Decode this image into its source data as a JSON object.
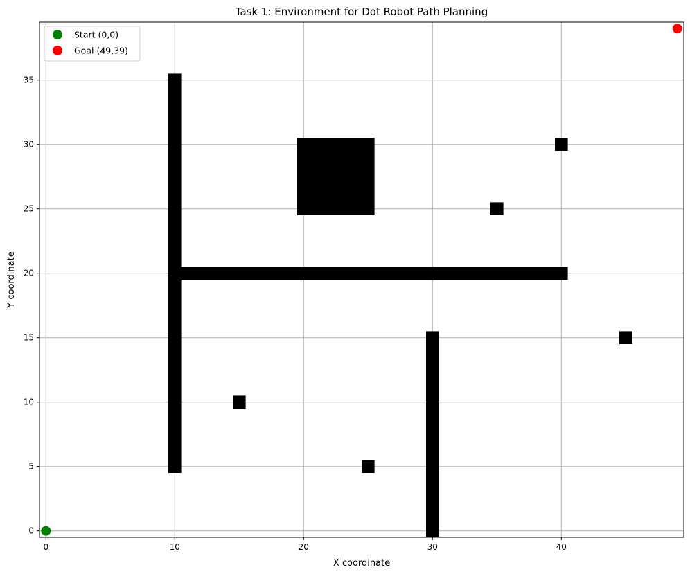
{
  "chart_data": {
    "type": "scatter",
    "title": "Task 1: Environment for Dot Robot Path Planning",
    "xlabel": "X coordinate",
    "ylabel": "Y coordinate",
    "xlim": [
      -0.5,
      49.5
    ],
    "ylim": [
      -0.5,
      39.5
    ],
    "xticks": [
      0,
      10,
      20,
      30,
      40
    ],
    "yticks": [
      0,
      5,
      10,
      15,
      20,
      25,
      30,
      35
    ],
    "grid": true,
    "legend_position": "top-left",
    "obstacle_color": "#000000",
    "obstacles": [
      {
        "x": [
          10,
          10
        ],
        "y": [
          5,
          35
        ]
      },
      {
        "x": [
          10,
          40
        ],
        "y": [
          20,
          20
        ]
      },
      {
        "x": [
          20,
          25
        ],
        "y": [
          25,
          30
        ]
      },
      {
        "x": [
          30,
          30
        ],
        "y": [
          0,
          15
        ]
      },
      {
        "x": [
          15,
          15
        ],
        "y": [
          10,
          10
        ]
      },
      {
        "x": [
          25,
          25
        ],
        "y": [
          5,
          5
        ]
      },
      {
        "x": [
          35,
          35
        ],
        "y": [
          25,
          25
        ]
      },
      {
        "x": [
          40,
          40
        ],
        "y": [
          30,
          30
        ]
      },
      {
        "x": [
          45,
          45
        ],
        "y": [
          15,
          15
        ]
      }
    ],
    "series": [
      {
        "name": "Start (0,0)",
        "color": "#008000",
        "points": [
          [
            0,
            0
          ]
        ]
      },
      {
        "name": "Goal (49,39)",
        "color": "#ff0000",
        "points": [
          [
            49,
            39
          ]
        ]
      }
    ]
  }
}
